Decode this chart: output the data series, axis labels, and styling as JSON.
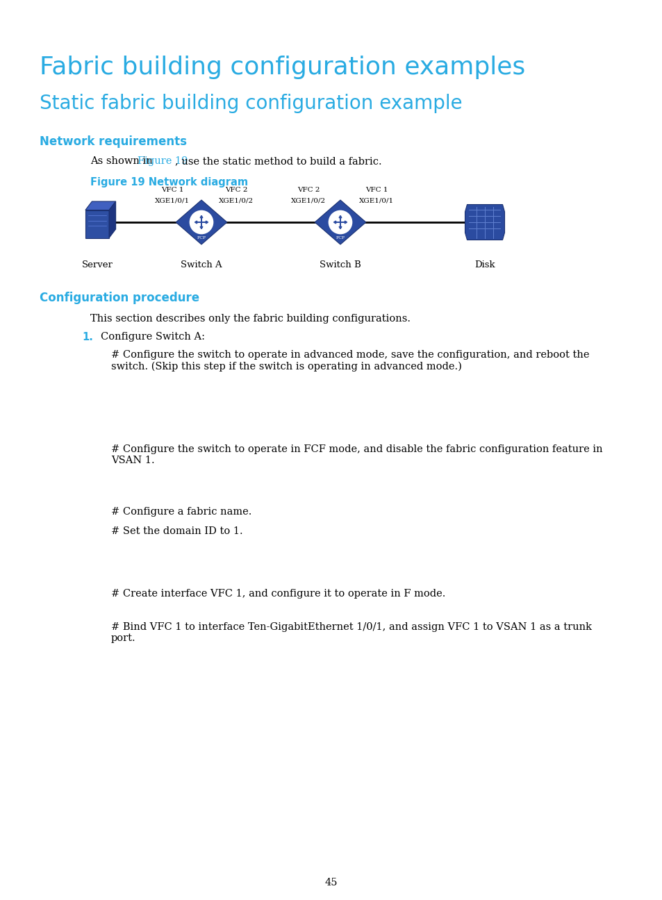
{
  "bg_color": "#ffffff",
  "title1": "Fabric building configuration examples",
  "title1_color": "#29ABE2",
  "title1_fontsize": 26,
  "title2": "Static fabric building configuration example",
  "title2_color": "#29ABE2",
  "title2_fontsize": 20,
  "section1_header": "Network requirements",
  "section1_header_color": "#29ABE2",
  "section1_header_fontsize": 12,
  "fig_caption": "Figure 19 Network diagram",
  "fig_caption_color": "#29ABE2",
  "fig_caption_fontsize": 10.5,
  "section2_header": "Configuration procedure",
  "section2_header_color": "#29ABE2",
  "section2_header_fontsize": 12,
  "section2_intro": "This section describes only the fabric building configurations.",
  "item1_num": "1.",
  "item1_num_color": "#29ABE2",
  "item1_text": "Configure Switch A:",
  "para1": "# Configure the switch to operate in advanced mode, save the configuration, and reboot the\nswitch. (Skip this step if the switch is operating in advanced mode.)",
  "para2": "# Configure the switch to operate in FCF mode, and disable the fabric configuration feature in\nVSAN 1.",
  "para3": "# Configure a fabric name.",
  "para4": "# Set the domain ID to 1.",
  "para5": "# Create interface VFC 1, and configure it to operate in F mode.",
  "para6": "# Bind VFC 1 to interface Ten-GigabitEthernet 1/0/1, and assign VFC 1 to VSAN 1 as a trunk\nport.",
  "page_num": "45",
  "link_color": "#29ABE2",
  "text_color": "#000000",
  "body_fontsize": 10.5,
  "switch_color": "#2B4BA0",
  "switch_color_light": "#3D5FC4",
  "switch_color_dark": "#1a3070"
}
